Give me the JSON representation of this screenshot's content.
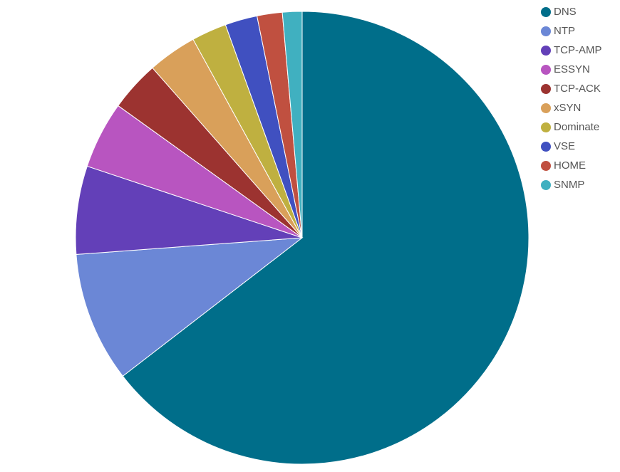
{
  "chart_data": {
    "type": "pie",
    "categories": [
      "DNS",
      "NTP",
      "TCP-AMP",
      "ESSYN",
      "TCP-ACK",
      "xSYN",
      "Dominate",
      "VSE",
      "HOME",
      "SNMP"
    ],
    "values": [
      64.6,
      9.3,
      6.3,
      4.8,
      3.6,
      3.5,
      2.5,
      2.3,
      1.8,
      1.4
    ],
    "colors": [
      "#006e8a",
      "#6b87d6",
      "#6340b8",
      "#b855c0",
      "#9c3330",
      "#d9a05a",
      "#bfb040",
      "#4050c0",
      "#c05040",
      "#40b0c0"
    ],
    "legend": "top-right"
  }
}
